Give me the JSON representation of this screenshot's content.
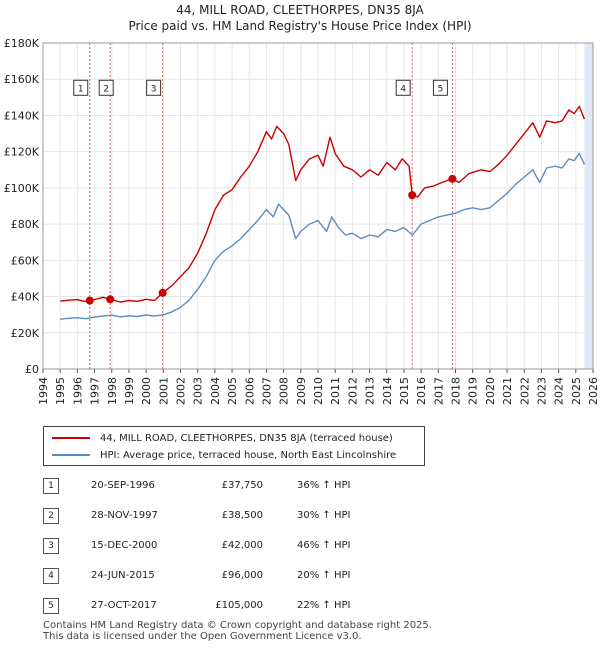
{
  "chart_data": {
    "type": "line",
    "title": "44, MILL ROAD, CLEETHORPES, DN35 8JA",
    "subtitle": "Price paid vs. HM Land Registry's House Price Index (HPI)",
    "xlabel": "",
    "ylabel": "",
    "xlim": [
      1994,
      2026
    ],
    "ylim": [
      0,
      180000
    ],
    "x_ticks": [
      1994,
      1995,
      1996,
      1997,
      1998,
      1999,
      2000,
      2001,
      2002,
      2003,
      2004,
      2005,
      2006,
      2007,
      2008,
      2009,
      2010,
      2011,
      2012,
      2013,
      2014,
      2015,
      2016,
      2017,
      2018,
      2019,
      2020,
      2021,
      2022,
      2023,
      2024,
      2025,
      2026
    ],
    "y_ticks": [
      0,
      20000,
      40000,
      60000,
      80000,
      100000,
      120000,
      140000,
      160000,
      180000
    ],
    "y_tick_labels": [
      "£0",
      "£20K",
      "£40K",
      "£60K",
      "£80K",
      "£100K",
      "£120K",
      "£140K",
      "£160K",
      "£180K"
    ],
    "grid": true,
    "colors": {
      "property": "#cc0000",
      "hpi": "#5b8cc0",
      "band": "#dfe8f4",
      "marker_line": "#dd6666"
    },
    "series": [
      {
        "name": "44, MILL ROAD, CLEETHORPES, DN35 8JA (terraced house)",
        "color": "#cc0000",
        "points": [
          [
            1995.0,
            37500
          ],
          [
            1995.5,
            38000
          ],
          [
            1996.0,
            38300
          ],
          [
            1996.4,
            37300
          ],
          [
            1996.72,
            37750
          ],
          [
            1997.0,
            38400
          ],
          [
            1997.5,
            39600
          ],
          [
            1997.91,
            38500
          ],
          [
            1998.5,
            37000
          ],
          [
            1999.0,
            37800
          ],
          [
            1999.5,
            37400
          ],
          [
            2000.0,
            38500
          ],
          [
            2000.5,
            37900
          ],
          [
            2000.96,
            42000
          ],
          [
            2001.5,
            46000
          ],
          [
            2002.0,
            51000
          ],
          [
            2002.5,
            56000
          ],
          [
            2003.0,
            64000
          ],
          [
            2003.5,
            75000
          ],
          [
            2004.0,
            88000
          ],
          [
            2004.5,
            96000
          ],
          [
            2005.0,
            99000
          ],
          [
            2005.5,
            106000
          ],
          [
            2006.0,
            112000
          ],
          [
            2006.5,
            120000
          ],
          [
            2007.0,
            131000
          ],
          [
            2007.3,
            127000
          ],
          [
            2007.6,
            134000
          ],
          [
            2008.0,
            130000
          ],
          [
            2008.3,
            124000
          ],
          [
            2008.7,
            104000
          ],
          [
            2009.0,
            110000
          ],
          [
            2009.5,
            116000
          ],
          [
            2010.0,
            118000
          ],
          [
            2010.3,
            112000
          ],
          [
            2010.7,
            128000
          ],
          [
            2011.0,
            119000
          ],
          [
            2011.5,
            112000
          ],
          [
            2012.0,
            110000
          ],
          [
            2012.5,
            106000
          ],
          [
            2013.0,
            110000
          ],
          [
            2013.5,
            107000
          ],
          [
            2014.0,
            114000
          ],
          [
            2014.5,
            110000
          ],
          [
            2014.9,
            116000
          ],
          [
            2015.3,
            112000
          ],
          [
            2015.48,
            96000
          ],
          [
            2015.8,
            95000
          ],
          [
            2016.2,
            100000
          ],
          [
            2016.7,
            101000
          ],
          [
            2017.2,
            103000
          ],
          [
            2017.82,
            105000
          ],
          [
            2018.2,
            103000
          ],
          [
            2018.8,
            108000
          ],
          [
            2019.5,
            110000
          ],
          [
            2020.0,
            109000
          ],
          [
            2020.5,
            113000
          ],
          [
            2021.0,
            118000
          ],
          [
            2021.5,
            124000
          ],
          [
            2022.0,
            130000
          ],
          [
            2022.5,
            136000
          ],
          [
            2022.9,
            128000
          ],
          [
            2023.3,
            137000
          ],
          [
            2023.8,
            136000
          ],
          [
            2024.2,
            137000
          ],
          [
            2024.6,
            143000
          ],
          [
            2024.9,
            141000
          ],
          [
            2025.2,
            145000
          ],
          [
            2025.5,
            138000
          ]
        ]
      },
      {
        "name": "HPI: Average price, terraced house, North East Lincolnshire",
        "color": "#5b8cc0",
        "points": [
          [
            1995.0,
            27500
          ],
          [
            1995.5,
            28000
          ],
          [
            1996.0,
            28300
          ],
          [
            1996.5,
            27800
          ],
          [
            1997.0,
            28700
          ],
          [
            1997.5,
            29300
          ],
          [
            1998.0,
            29700
          ],
          [
            1998.5,
            28800
          ],
          [
            1999.0,
            29400
          ],
          [
            1999.5,
            29000
          ],
          [
            2000.0,
            29800
          ],
          [
            2000.5,
            29200
          ],
          [
            2001.0,
            30000
          ],
          [
            2001.5,
            31500
          ],
          [
            2002.0,
            34000
          ],
          [
            2002.5,
            38000
          ],
          [
            2003.0,
            44000
          ],
          [
            2003.5,
            51000
          ],
          [
            2004.0,
            60000
          ],
          [
            2004.5,
            65000
          ],
          [
            2005.0,
            68000
          ],
          [
            2005.5,
            72000
          ],
          [
            2006.0,
            77000
          ],
          [
            2006.5,
            82000
          ],
          [
            2007.0,
            88000
          ],
          [
            2007.4,
            84000
          ],
          [
            2007.7,
            91000
          ],
          [
            2008.0,
            88000
          ],
          [
            2008.3,
            85000
          ],
          [
            2008.7,
            72000
          ],
          [
            2009.0,
            76000
          ],
          [
            2009.5,
            80000
          ],
          [
            2010.0,
            82000
          ],
          [
            2010.5,
            76000
          ],
          [
            2010.8,
            84000
          ],
          [
            2011.2,
            78000
          ],
          [
            2011.6,
            74000
          ],
          [
            2012.0,
            75000
          ],
          [
            2012.5,
            72000
          ],
          [
            2013.0,
            74000
          ],
          [
            2013.5,
            73000
          ],
          [
            2014.0,
            77000
          ],
          [
            2014.5,
            76000
          ],
          [
            2015.0,
            78000
          ],
          [
            2015.5,
            74000
          ],
          [
            2016.0,
            80000
          ],
          [
            2016.5,
            82000
          ],
          [
            2017.0,
            84000
          ],
          [
            2017.5,
            85000
          ],
          [
            2018.0,
            86000
          ],
          [
            2018.5,
            88000
          ],
          [
            2019.0,
            89000
          ],
          [
            2019.5,
            88000
          ],
          [
            2020.0,
            89000
          ],
          [
            2020.5,
            93000
          ],
          [
            2021.0,
            97000
          ],
          [
            2021.5,
            102000
          ],
          [
            2022.0,
            106000
          ],
          [
            2022.5,
            110000
          ],
          [
            2022.9,
            103000
          ],
          [
            2023.3,
            111000
          ],
          [
            2023.8,
            112000
          ],
          [
            2024.2,
            111000
          ],
          [
            2024.6,
            116000
          ],
          [
            2024.9,
            115000
          ],
          [
            2025.2,
            119000
          ],
          [
            2025.5,
            113000
          ]
        ]
      }
    ],
    "sales": [
      {
        "label": "1",
        "x": 1996.72,
        "date": "20-SEP-1996",
        "price": 37750,
        "price_text": "£37,750",
        "hpi_text": "36% ↑ HPI"
      },
      {
        "label": "2",
        "x": 1997.91,
        "date": "28-NOV-1997",
        "price": 38500,
        "price_text": "£38,500",
        "hpi_text": "30% ↑ HPI"
      },
      {
        "label": "3",
        "x": 2000.96,
        "date": "15-DEC-2000",
        "price": 42000,
        "price_text": "£42,000",
        "hpi_text": "46% ↑ HPI"
      },
      {
        "label": "4",
        "x": 2015.48,
        "date": "24-JUN-2015",
        "price": 96000,
        "price_text": "£96,000",
        "hpi_text": "20% ↑ HPI"
      },
      {
        "label": "5",
        "x": 2017.82,
        "date": "27-OCT-2017",
        "price": 105000,
        "price_text": "£105,000",
        "hpi_text": "22% ↑ HPI"
      }
    ],
    "label_box_value": 155000,
    "future_band": [
      2025.5,
      2026
    ]
  },
  "legend": {
    "property_label": "44, MILL ROAD, CLEETHORPES, DN35 8JA (terraced house)",
    "hpi_label": "HPI: Average price, terraced house, North East Lincolnshire"
  },
  "footer": {
    "line1": "Contains HM Land Registry data © Crown copyright and database right 2025.",
    "line2": "This data is licensed under the Open Government Licence v3.0."
  }
}
